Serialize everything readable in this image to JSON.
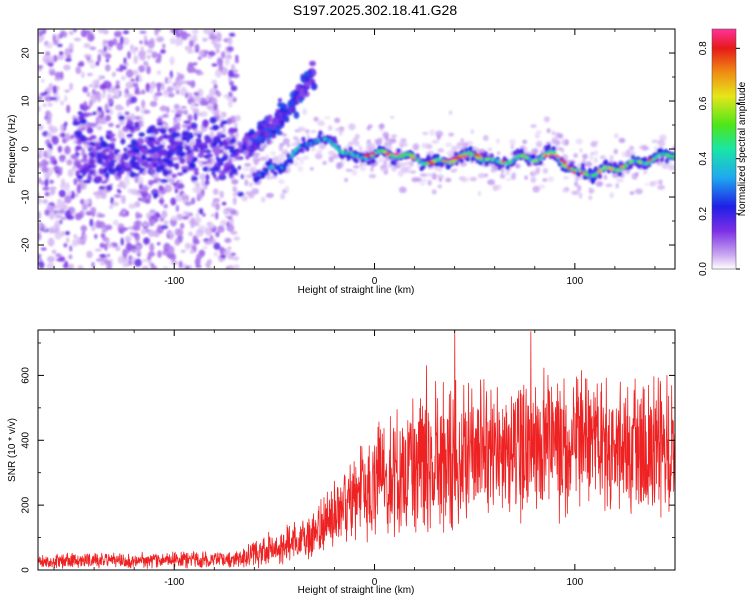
{
  "title": "S197.2025.302.18.41.G28",
  "colors": {
    "snr_line": "#ee2222",
    "cmap": [
      "#ffffff",
      "#c9a6f0",
      "#7b2fe6",
      "#1f1fe6",
      "#1fa8f0",
      "#19e6a5",
      "#4de619",
      "#e6e619",
      "#f08c14",
      "#e61919",
      "#ff3399"
    ]
  },
  "chart_data": [
    {
      "type": "heatmap",
      "title": "",
      "xlabel": "Height of straight line (km)",
      "ylabel": "Frequency (Hz)",
      "xlim": [
        -168,
        150
      ],
      "ylim": [
        -25,
        25
      ],
      "x_ticks": [
        -100,
        0,
        100
      ],
      "x_tick_labels": [
        "-100",
        "0",
        "100"
      ],
      "y_ticks": [
        -20,
        -10,
        0,
        10,
        20
      ],
      "y_tick_labels": [
        "-20",
        "-10",
        "0",
        "10",
        "20"
      ],
      "colorbar": {
        "label": "Normalized spectral amplitude",
        "range": [
          0.0,
          0.87
        ],
        "ticks": [
          0.0,
          0.2,
          0.4,
          0.6,
          0.8
        ],
        "tick_labels": [
          "0.0",
          "0.2",
          "0.4",
          "0.6",
          "0.8"
        ]
      },
      "features": {
        "main_track": {
          "description_points_x": [
            -55,
            -45,
            -35,
            -30,
            -20,
            -10,
            0,
            10,
            20,
            30,
            40,
            50,
            60,
            70,
            80,
            90,
            100,
            110,
            120,
            130,
            140,
            150
          ],
          "description_points_y": [
            -5,
            -3,
            1,
            2,
            1,
            -2,
            -1,
            -1,
            -2,
            -3,
            -2,
            -1,
            -3,
            -2,
            -2,
            -1,
            -5,
            -5,
            -4,
            -3,
            -2,
            -1
          ],
          "peak_amplitude": 0.87
        },
        "diagonal_branch": {
          "x": [
            -65,
            -55,
            -50,
            -45,
            -40,
            -35,
            -30
          ],
          "y": [
            0,
            3,
            5,
            8,
            10,
            13,
            16
          ]
        },
        "noise_region_x": [
          -168,
          -68
        ]
      }
    },
    {
      "type": "line",
      "title": "",
      "xlabel": "Height of straight line (km)",
      "ylabel": "SNR (10 * v/v)",
      "xlim": [
        -168,
        150
      ],
      "ylim": [
        0,
        740
      ],
      "x_ticks": [
        -100,
        0,
        100
      ],
      "x_tick_labels": [
        "-100",
        "0",
        "100"
      ],
      "y_ticks": [
        0,
        200,
        400,
        600
      ],
      "y_tick_labels": [
        "0",
        "200",
        "400",
        "600"
      ],
      "envelope": {
        "x": [
          -168,
          -70,
          -60,
          -40,
          -30,
          -20,
          -10,
          0,
          20,
          40,
          60,
          80,
          100,
          120,
          150
        ],
        "base": [
          25,
          30,
          45,
          80,
          95,
          160,
          210,
          250,
          300,
          330,
          350,
          360,
          360,
          365,
          370
        ],
        "spread": [
          40,
          50,
          80,
          120,
          150,
          220,
          280,
          320,
          420,
          450,
          420,
          430,
          400,
          420,
          400
        ]
      },
      "peaks": [
        {
          "x": 40,
          "y": 740
        },
        {
          "x": 78,
          "y": 735
        },
        {
          "x": 26,
          "y": 630
        },
        {
          "x": 146,
          "y": 600
        }
      ]
    }
  ]
}
